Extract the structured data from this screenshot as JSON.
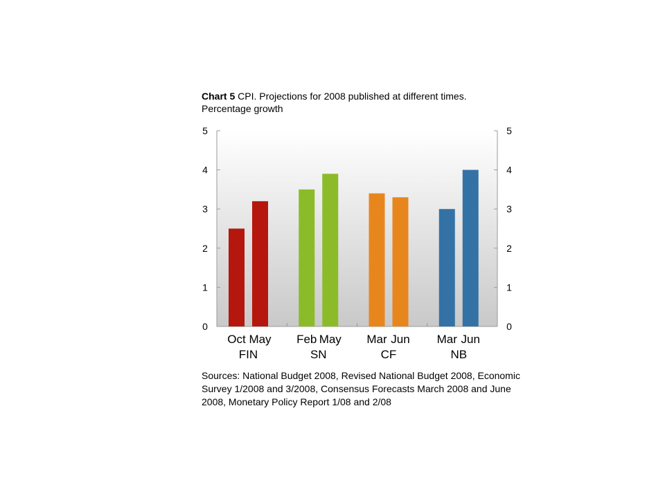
{
  "title": {
    "prefix": "Chart 5",
    "text": " CPI. Projections for 2008 published at different times.",
    "subtitle": "Percentage growth"
  },
  "sources": "Sources: National Budget 2008, Revised National Budget 2008, Economic Survey 1/2008 and 3/2008, Consensus Forecasts March 2008 and June 2008, Monetary Policy Report 1/08 and 2/08",
  "chart_data": {
    "type": "bar",
    "title": "Chart 5 CPI. Projections for 2008 published at different times.",
    "subtitle": "Percentage growth",
    "ylim": [
      0,
      5
    ],
    "yticks": [
      0,
      1,
      2,
      3,
      4,
      5
    ],
    "right_axis": true,
    "grid": false,
    "legend": "none",
    "groups": [
      {
        "name": "FIN",
        "color": "#b5170e",
        "categories": [
          "Oct",
          "May"
        ],
        "values": [
          2.5,
          3.2
        ]
      },
      {
        "name": "SN",
        "color": "#8cbb2a",
        "categories": [
          "Feb",
          "May"
        ],
        "values": [
          3.5,
          3.9
        ]
      },
      {
        "name": "CF",
        "color": "#e8861e",
        "categories": [
          "Mar",
          "Jun"
        ],
        "values": [
          3.4,
          3.3
        ]
      },
      {
        "name": "NB",
        "color": "#3472a6",
        "categories": [
          "Mar",
          "Jun"
        ],
        "values": [
          3.0,
          4.0
        ]
      }
    ]
  }
}
